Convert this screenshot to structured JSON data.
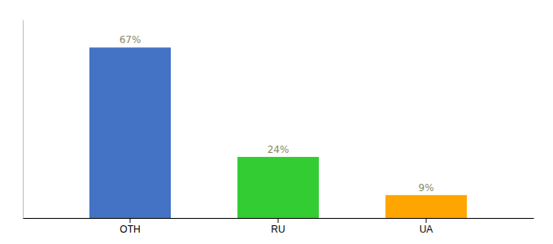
{
  "chart_data": {
    "type": "bar",
    "categories": [
      "OTH",
      "RU",
      "UA"
    ],
    "values": [
      67,
      24,
      9
    ],
    "value_labels": [
      "67%",
      "24%",
      "9%"
    ],
    "colors": [
      "#4472c4",
      "#33cc33",
      "#ffa500"
    ],
    "ylim": [
      0,
      78
    ],
    "data_labels": true,
    "grid": false,
    "tick_labels": "x"
  }
}
